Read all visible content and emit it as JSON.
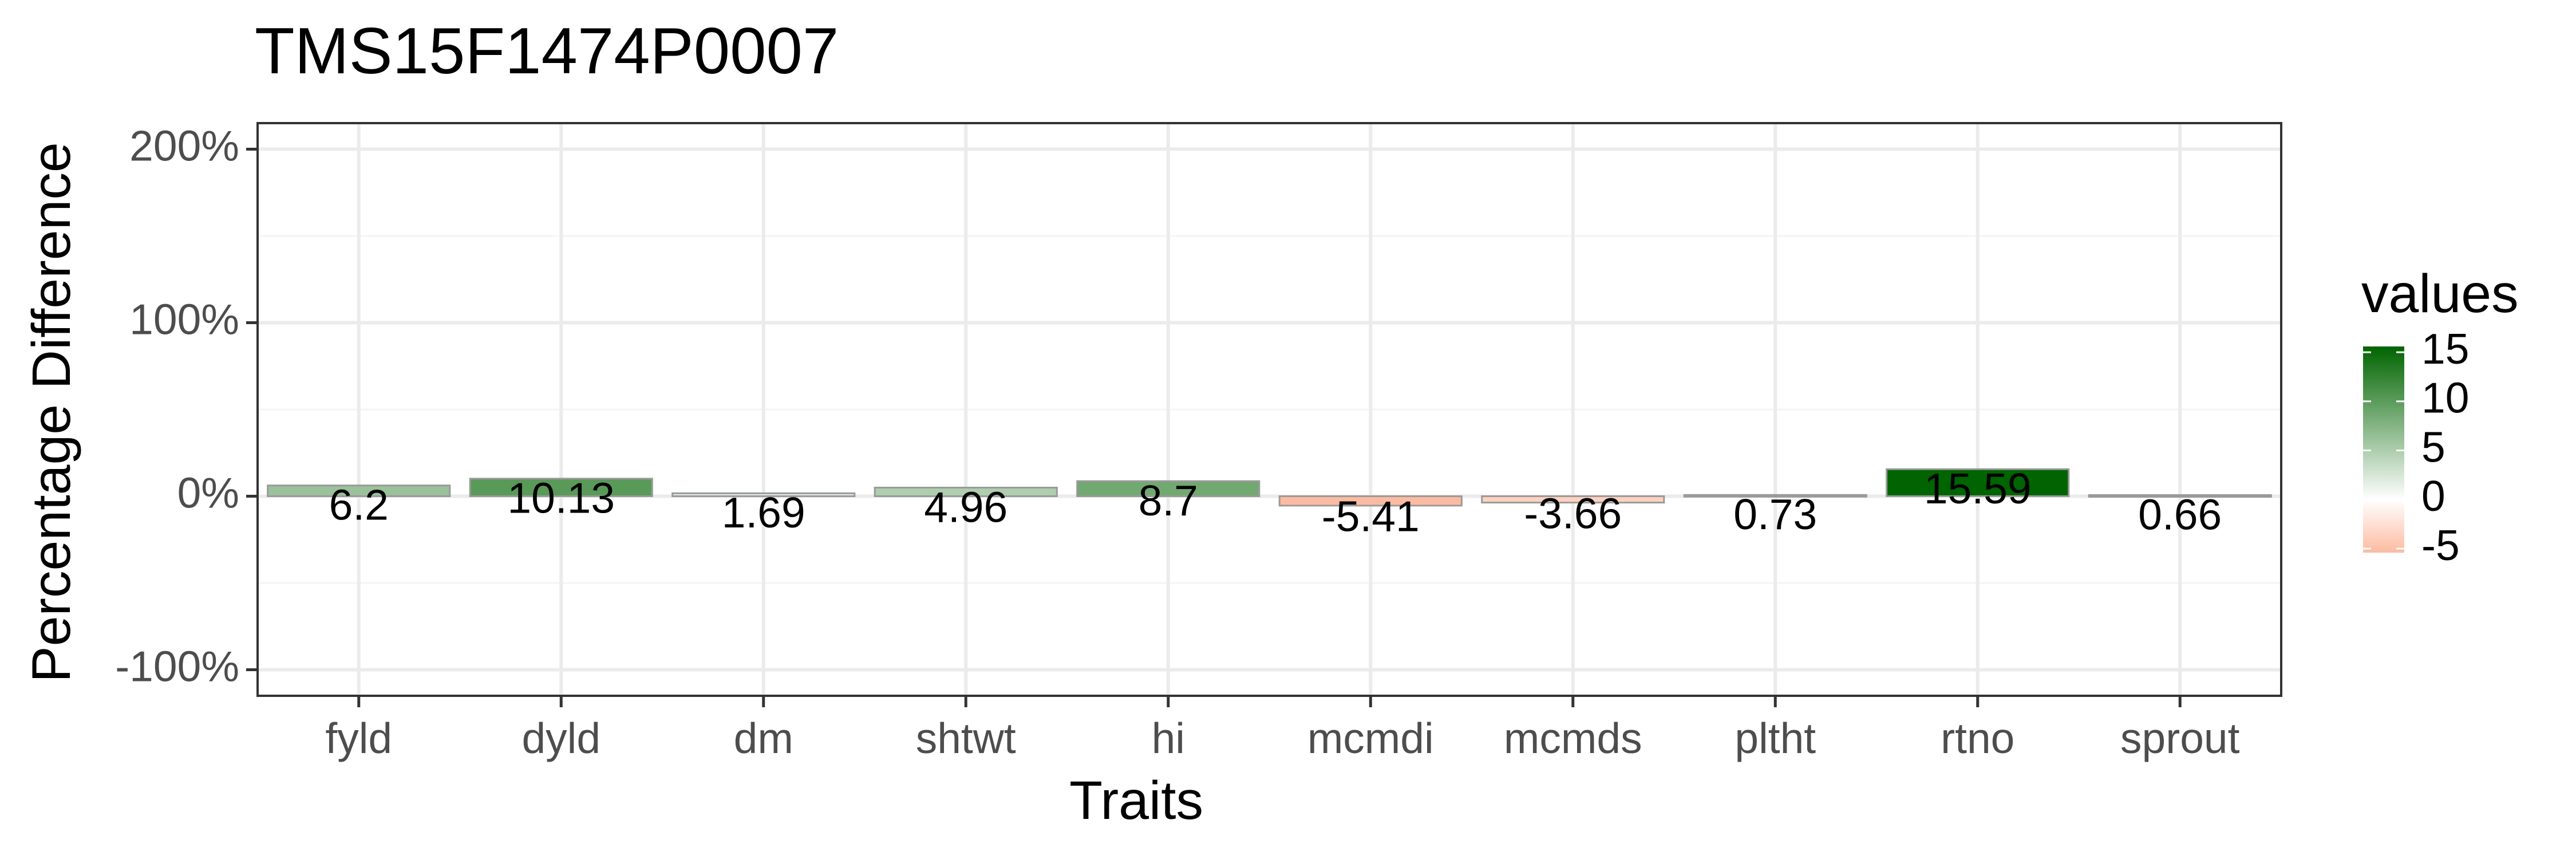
{
  "chart_data": {
    "type": "bar",
    "title": "TMS15F1474P0007",
    "xlabel": "Traits",
    "ylabel": "Percentage Difference",
    "categories": [
      "fyld",
      "dyld",
      "dm",
      "shtwt",
      "hi",
      "mcmdi",
      "mcmds",
      "pltht",
      "rtno",
      "sprout"
    ],
    "values": [
      6.2,
      10.13,
      1.69,
      4.96,
      8.7,
      -5.41,
      -3.66,
      0.73,
      15.59,
      0.66
    ],
    "value_labels": [
      "6.2",
      "10.13",
      "1.69",
      "4.96",
      "8.7",
      "-5.41",
      "-3.66",
      "0.73",
      "15.59",
      "0.66"
    ],
    "ylim": [
      -115,
      215
    ],
    "y_ticks": [
      -100,
      0,
      100,
      200
    ],
    "y_tick_labels": [
      "-100%",
      "0%",
      "100%",
      "200%"
    ],
    "grid": true,
    "legend": {
      "title": "values",
      "position": "right",
      "colorbar_range": [
        -5.41,
        15.59
      ],
      "ticks": [
        15,
        10,
        5,
        0,
        -5
      ],
      "tick_labels": [
        "15",
        "10",
        "5",
        "0",
        "-5"
      ],
      "colors": {
        "low": "#fcbba1",
        "mid": "#ffffff",
        "high": "#006400"
      }
    },
    "colors": {
      "panel_border": "#333333",
      "grid_major": "#ebebeb",
      "grid_minor": "#f4f4f4",
      "bar_outline": "#9a9a9a"
    }
  }
}
